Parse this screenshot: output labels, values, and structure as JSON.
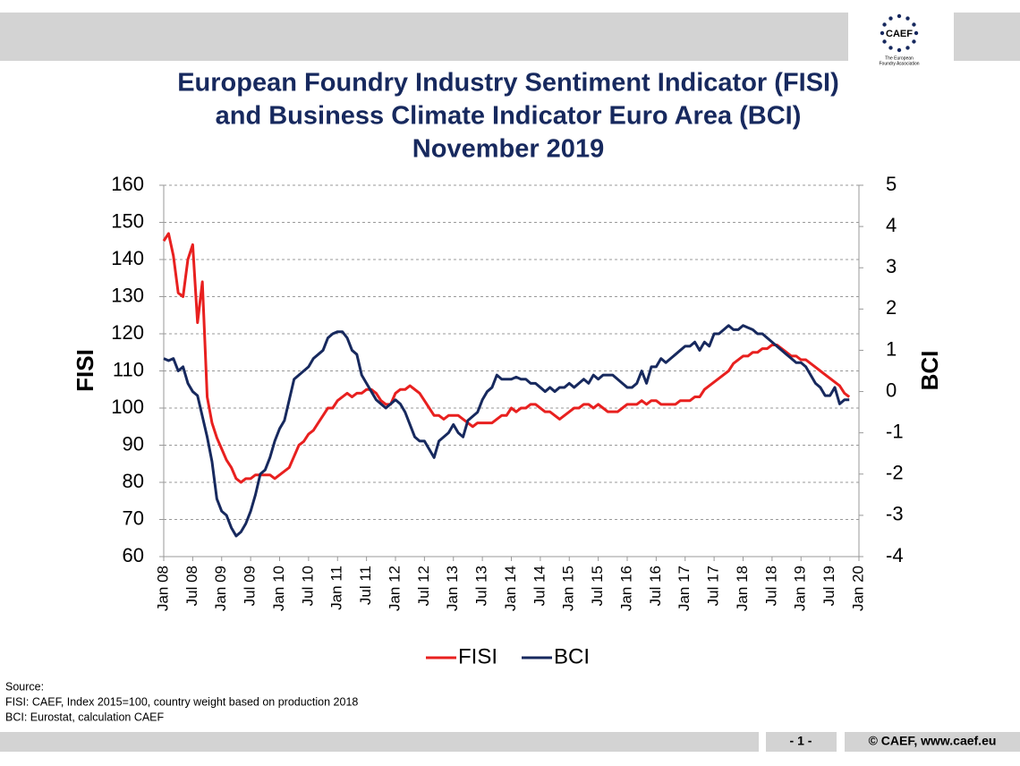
{
  "chart_data": {
    "type": "line",
    "title": [
      "European Foundry Industry Sentiment Indicator (FISI)",
      "and Business Climate Indicator Euro Area (BCI)",
      "November 2019"
    ],
    "ylabel": "FISI",
    "y2label": "BCI",
    "categories": [
      "Jan 08",
      null,
      null,
      null,
      null,
      null,
      "Jul 08",
      null,
      null,
      null,
      null,
      null,
      "Jan 09",
      null,
      null,
      null,
      null,
      null,
      "Jul 09",
      null,
      null,
      null,
      null,
      null,
      "Jan 10",
      null,
      null,
      null,
      null,
      null,
      "Jul 10",
      null,
      null,
      null,
      null,
      null,
      "Jan 11",
      null,
      null,
      null,
      null,
      null,
      "Jul 11",
      null,
      null,
      null,
      null,
      null,
      "Jan 12",
      null,
      null,
      null,
      null,
      null,
      "Jul 12",
      null,
      null,
      null,
      null,
      null,
      "Jan 13",
      null,
      null,
      null,
      null,
      null,
      "Jul 13",
      null,
      null,
      null,
      null,
      null,
      "Jan 14",
      null,
      null,
      null,
      null,
      null,
      "Jul 14",
      null,
      null,
      null,
      null,
      null,
      "Jan 15",
      null,
      null,
      null,
      null,
      null,
      "Jul 15",
      null,
      null,
      null,
      null,
      null,
      "Jan 16",
      null,
      null,
      null,
      null,
      null,
      "Jul 16",
      null,
      null,
      null,
      null,
      null,
      "Jan 17",
      null,
      null,
      null,
      null,
      null,
      "Jul 17",
      null,
      null,
      null,
      null,
      null,
      "Jan 18",
      null,
      null,
      null,
      null,
      null,
      "Jul 18",
      null,
      null,
      null,
      null,
      null,
      "Jan 19",
      null,
      null,
      null,
      null,
      null,
      "Jul 19",
      null,
      null,
      null,
      null,
      null,
      "Jan 20"
    ],
    "series": [
      {
        "name": "FISI",
        "color": "#e8201f",
        "values": [
          145,
          147,
          141,
          131,
          130,
          140,
          144,
          123,
          134,
          103,
          96,
          92,
          89,
          86,
          84,
          81,
          80,
          81,
          81,
          82,
          82,
          82,
          82,
          81,
          82,
          83,
          84,
          87,
          90,
          91,
          93,
          94,
          96,
          98,
          100,
          100,
          102,
          103,
          104,
          103,
          104,
          104,
          105,
          105,
          104,
          102,
          101,
          101,
          104,
          105,
          105,
          106,
          105,
          104,
          102,
          100,
          98,
          98,
          97,
          98,
          98,
          98,
          97,
          96,
          95,
          96,
          96,
          96,
          96,
          97,
          98,
          98,
          100,
          99,
          100,
          100,
          101,
          101,
          100,
          99,
          99,
          98,
          97,
          98,
          99,
          100,
          100,
          101,
          101,
          100,
          101,
          100,
          99,
          99,
          99,
          100,
          101,
          101,
          101,
          102,
          101,
          102,
          102,
          101,
          101,
          101,
          101,
          102,
          102,
          102,
          103,
          103,
          105,
          106,
          107,
          108,
          109,
          110,
          112,
          113,
          114,
          114,
          115,
          115,
          116,
          116,
          117,
          117,
          116,
          115,
          114,
          114,
          113,
          113,
          112,
          111,
          110,
          109,
          108,
          107,
          106,
          104,
          103,
          null,
          null
        ]
      },
      {
        "name": "BCI",
        "color": "#17295e",
        "axis": "y2",
        "values": [
          0.8,
          0.75,
          0.8,
          0.5,
          0.6,
          0.2,
          0,
          -0.1,
          -0.6,
          -1.1,
          -1.7,
          -2.6,
          -2.9,
          -3.0,
          -3.3,
          -3.5,
          -3.4,
          -3.2,
          -2.9,
          -2.5,
          -2.0,
          -1.9,
          -1.6,
          -1.2,
          -0.9,
          -0.7,
          -0.2,
          0.3,
          0.4,
          0.5,
          0.6,
          0.8,
          0.9,
          1.0,
          1.3,
          1.4,
          1.45,
          1.45,
          1.3,
          1.0,
          0.9,
          0.4,
          0.2,
          0,
          -0.2,
          -0.3,
          -0.4,
          -0.3,
          -0.2,
          -0.3,
          -0.5,
          -0.8,
          -1.1,
          -1.2,
          -1.2,
          -1.4,
          -1.6,
          -1.2,
          -1.1,
          -1.0,
          -0.8,
          -1.0,
          -1.1,
          -0.7,
          -0.6,
          -0.5,
          -0.2,
          0,
          0.1,
          0.4,
          0.3,
          0.3,
          0.3,
          0.35,
          0.3,
          0.3,
          0.2,
          0.2,
          0.1,
          0,
          0.1,
          0,
          0.1,
          0.1,
          0.2,
          0.1,
          0.2,
          0.3,
          0.2,
          0.4,
          0.3,
          0.4,
          0.4,
          0.4,
          0.3,
          0.2,
          0.1,
          0.1,
          0.2,
          0.5,
          0.2,
          0.6,
          0.6,
          0.8,
          0.7,
          0.8,
          0.9,
          1.0,
          1.1,
          1.1,
          1.2,
          1.0,
          1.2,
          1.1,
          1.4,
          1.4,
          1.5,
          1.6,
          1.5,
          1.5,
          1.6,
          1.55,
          1.5,
          1.4,
          1.4,
          1.3,
          1.2,
          1.1,
          1.0,
          0.9,
          0.8,
          0.7,
          0.7,
          0.6,
          0.4,
          0.2,
          0.1,
          -0.1,
          -0.1,
          0.1,
          -0.3,
          -0.2,
          -0.2,
          null,
          null
        ]
      }
    ],
    "ylim": [
      60,
      160
    ],
    "yticks": [
      60,
      70,
      80,
      90,
      100,
      110,
      120,
      130,
      140,
      150,
      160
    ],
    "y2lim": [
      -4,
      5
    ],
    "y2ticks": [
      -4,
      -3,
      -2,
      -1,
      0,
      1,
      2,
      3,
      4,
      5
    ],
    "grid": true,
    "legend": "bottom"
  },
  "source": [
    "Source:",
    "FISI: CAEF, Index 2015=100, country weight based on production 2018",
    "BCI: Eurostat, calculation CAEF"
  ],
  "footer": {
    "page": "- 1 -",
    "copyright": "© CAEF, www.caef.eu"
  },
  "logo": {
    "name": "CAEF",
    "tagline": [
      "The European",
      "Foundry Association"
    ]
  }
}
